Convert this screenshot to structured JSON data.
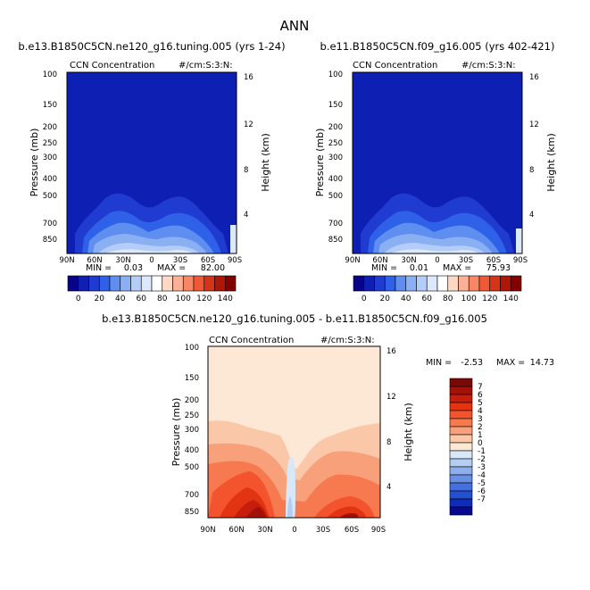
{
  "figure": {
    "title": "ANN"
  },
  "chart_data": [
    {
      "type": "heatmap",
      "case": "b.e13.B1850C5CN.ne120_g16.tuning.005 (yrs 1-24)",
      "variable": "CCN Concentration",
      "units": "#/cm:S:3:N:",
      "ylabel": "Pressure (mb)",
      "y2label": "Height (km)",
      "x_ticks": [
        "90N",
        "60N",
        "30N",
        "0",
        "30S",
        "60S",
        "90S"
      ],
      "y_ticks": [
        "100",
        "150",
        "200",
        "250",
        "300",
        "400",
        "500",
        "700",
        "850"
      ],
      "y2_ticks": [
        "16",
        "12",
        "8",
        "4"
      ],
      "min_label": "MIN =",
      "min": "0.03",
      "max_label": "MAX =",
      "max": "82.00",
      "colorbar": {
        "orientation": "horizontal",
        "labels": [
          "0",
          "20",
          "40",
          "60",
          "80",
          "100",
          "120",
          "140"
        ],
        "colors": [
          "#08048a",
          "#0e1fb4",
          "#1f3bd0",
          "#2f60e8",
          "#5e8eef",
          "#8ab0f3",
          "#b4cdf8",
          "#dce8fc",
          "#ffffff",
          "#fdd8c4",
          "#fbb195",
          "#f98766",
          "#ef5a35",
          "#d43417",
          "#b01608",
          "#840000"
        ]
      }
    },
    {
      "type": "heatmap",
      "case": "b.e11.B1850C5CN.f09_g16.005 (yrs 402-421)",
      "variable": "CCN Concentration",
      "units": "#/cm:S:3:N:",
      "ylabel": "Pressure (mb)",
      "y2label": "Height (km)",
      "x_ticks": [
        "90N",
        "60N",
        "30N",
        "0",
        "30S",
        "60S",
        "90S"
      ],
      "y_ticks": [
        "100",
        "150",
        "200",
        "250",
        "300",
        "400",
        "500",
        "700",
        "850"
      ],
      "y2_ticks": [
        "16",
        "12",
        "8",
        "4"
      ],
      "min_label": "MIN =",
      "min": "0.01",
      "max_label": "MAX =",
      "max": "75.93",
      "colorbar": {
        "orientation": "horizontal",
        "labels": [
          "0",
          "20",
          "40",
          "60",
          "80",
          "100",
          "120",
          "140"
        ],
        "colors": [
          "#08048a",
          "#0e1fb4",
          "#1f3bd0",
          "#2f60e8",
          "#5e8eef",
          "#8ab0f3",
          "#b4cdf8",
          "#dce8fc",
          "#ffffff",
          "#fdd8c4",
          "#fbb195",
          "#f98766",
          "#ef5a35",
          "#d43417",
          "#b01608",
          "#840000"
        ]
      }
    },
    {
      "type": "heatmap",
      "case": "b.e13.B1850C5CN.ne120_g16.tuning.005 - b.e11.B1850C5CN.f09_g16.005",
      "variable": "CCN Concentration",
      "units": "#/cm:S:3:N:",
      "ylabel": "Pressure (mb)",
      "y2label": "Height (km)",
      "x_ticks": [
        "90N",
        "60N",
        "30N",
        "0",
        "30S",
        "60S",
        "90S"
      ],
      "y_ticks": [
        "100",
        "150",
        "200",
        "250",
        "300",
        "400",
        "500",
        "700",
        "850"
      ],
      "y2_ticks": [
        "16",
        "12",
        "8",
        "4"
      ],
      "min_label": "MIN =",
      "min": "-2.53",
      "max_label": "MAX =",
      "max": "14.73",
      "colorbar": {
        "orientation": "vertical",
        "labels": [
          "7",
          "6",
          "5",
          "4",
          "3",
          "2",
          "1",
          "0",
          "-1",
          "-2",
          "-3",
          "-4",
          "-5",
          "-6",
          "-7"
        ],
        "colors": [
          "#7b0a06",
          "#a31208",
          "#c61d0c",
          "#e23412",
          "#f3532d",
          "#f6794f",
          "#f8a07a",
          "#fac8a8",
          "#fde8d6",
          "#d8e8f8",
          "#b4cdf2",
          "#8eafec",
          "#6a90e6",
          "#4570de",
          "#2450d2",
          "#0f2cb8",
          "#060a90"
        ]
      }
    }
  ]
}
